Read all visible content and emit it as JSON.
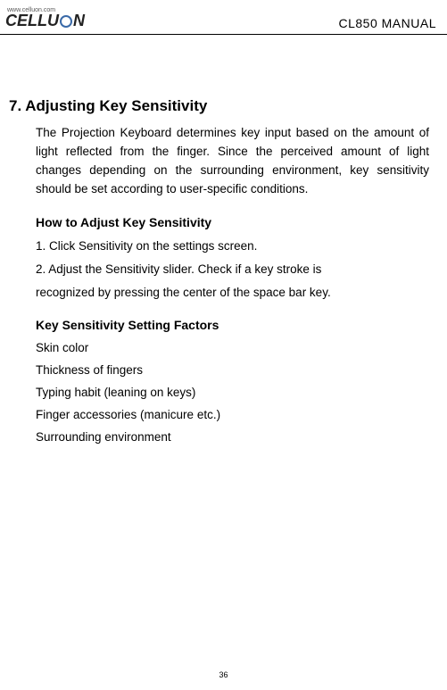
{
  "header": {
    "url": "www.celluon.com",
    "logo_pre": "CELLU",
    "logo_post": "N",
    "doc_title": "CL850 MANUAL"
  },
  "section": {
    "title": "7. Adjusting Key Sensitivity",
    "intro": "The Projection Keyboard determines key input based on the amount of light reflected from the finger. Since the perceived amount of light changes depending on the surrounding environment, key sensitivity should be set according to user-specific conditions.",
    "howto_heading": "How to Adjust Key Sensitivity",
    "steps": [
      "1. Click Sensitivity on the settings screen.",
      "2. Adjust the Sensitivity slider. Check if a key stroke is",
      "recognized by pressing the center of the space bar key."
    ],
    "factors_heading": "Key Sensitivity Setting Factors",
    "factors": [
      "Skin color",
      "Thickness of fingers",
      "Typing habit (leaning on keys)",
      "Finger accessories (manicure etc.)",
      "Surrounding environment"
    ]
  },
  "page_number": "36"
}
